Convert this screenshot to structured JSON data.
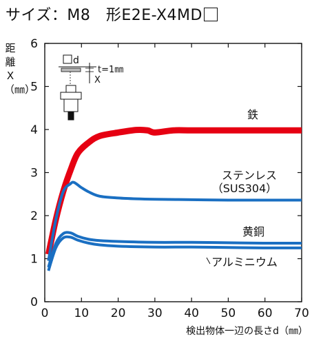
{
  "header": {
    "title_prefix": "サイズ：M8　形E2E-X4MD"
  },
  "chart_data": {
    "type": "line",
    "title": "サイズ：M8　形E2E-X4MD",
    "ylabel": "距離X（㎜）",
    "xlabel": "検出物体一辺の長さd（㎜）",
    "xlim": [
      0,
      70
    ],
    "ylim": [
      0,
      6
    ],
    "xticks": [
      0,
      10,
      20,
      30,
      40,
      50,
      60,
      70
    ],
    "yticks": [
      0,
      1,
      2,
      3,
      4,
      5,
      6
    ],
    "grid": false,
    "series": [
      {
        "name": "鉄",
        "color": "#e60012",
        "x": [
          1,
          3,
          5,
          7,
          9,
          12,
          15,
          20,
          25,
          28,
          30,
          35,
          40,
          50,
          60,
          70
        ],
        "y": [
          1.1,
          1.9,
          2.55,
          3.05,
          3.45,
          3.7,
          3.85,
          3.93,
          3.99,
          3.98,
          3.93,
          3.98,
          3.98,
          3.98,
          3.98,
          3.98
        ]
      },
      {
        "name": "ステンレス（SUS304）",
        "color": "#1a6fc2",
        "x": [
          1,
          3,
          5,
          7,
          8,
          10,
          12,
          15,
          20,
          25,
          30,
          40,
          50,
          60,
          70
        ],
        "y": [
          0.95,
          1.9,
          2.55,
          2.74,
          2.77,
          2.65,
          2.55,
          2.45,
          2.41,
          2.39,
          2.38,
          2.37,
          2.36,
          2.36,
          2.36
        ]
      },
      {
        "name": "黄銅",
        "color": "#1a6fc2",
        "x": [
          1,
          3,
          5,
          7,
          9,
          12,
          15,
          20,
          30,
          40,
          50,
          60,
          70
        ],
        "y": [
          0.8,
          1.35,
          1.58,
          1.6,
          1.52,
          1.45,
          1.42,
          1.4,
          1.38,
          1.38,
          1.37,
          1.36,
          1.36
        ]
      },
      {
        "name": "アルミニウム",
        "color": "#1a6fc2",
        "x": [
          1,
          3,
          5,
          7,
          9,
          12,
          15,
          20,
          30,
          40,
          50,
          60,
          70
        ],
        "y": [
          0.72,
          1.25,
          1.48,
          1.5,
          1.43,
          1.36,
          1.32,
          1.29,
          1.27,
          1.27,
          1.26,
          1.25,
          1.25
        ]
      }
    ],
    "inset": {
      "d_label": "□d",
      "t_label": "t=1㎜",
      "x_label": "X"
    }
  }
}
